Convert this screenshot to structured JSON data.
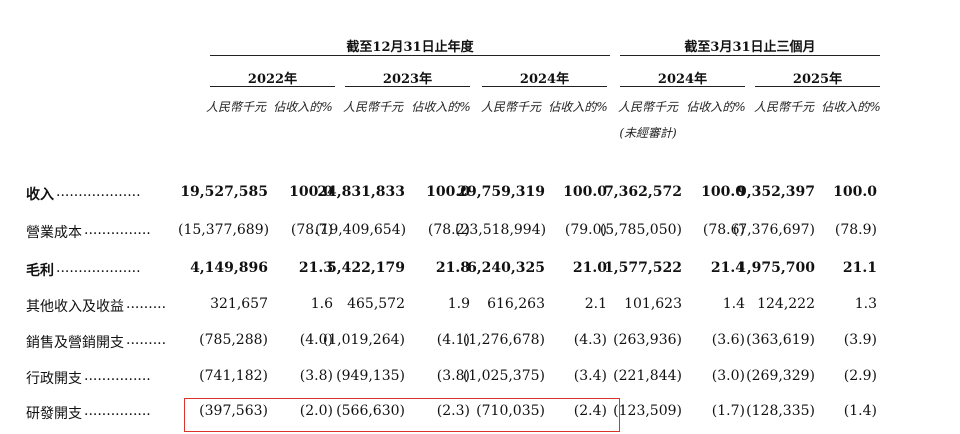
{
  "header": {
    "group_fy": "截至12月31日止年度",
    "group_q": "截至3月31日止三個月",
    "years": [
      "2022年",
      "2023年",
      "2024年",
      "2024年",
      "2025年"
    ],
    "sub_amount": "人民幣千元",
    "sub_pct": "佔收入的%",
    "unaudited": "(未經審計)"
  },
  "rows": [
    {
      "label": "收入",
      "dots": "...................",
      "bold": true,
      "values": [
        "19,527,585",
        "100.0",
        "24,831,833",
        "100.0",
        "29,759,319",
        "100.0",
        "7,362,572",
        "100.0",
        "9,352,397",
        "100.0"
      ]
    },
    {
      "label": "營業成本",
      "dots": "...............",
      "bold": false,
      "values": [
        "(15,377,689)",
        "(78.7)",
        "(19,409,654)",
        "(78.2)",
        "(23,518,994)",
        "(79.0)",
        "(5,785,050)",
        "(78.6)",
        "(7,376,697)",
        "(78.9)"
      ]
    },
    {
      "label": "毛利",
      "dots": "...................",
      "bold": true,
      "values": [
        "4,149,896",
        "21.3",
        "5,422,179",
        "21.8",
        "6,240,325",
        "21.0",
        "1,577,522",
        "21.4",
        "1,975,700",
        "21.1"
      ]
    },
    {
      "label": "其他收入及收益",
      "dots": ".........",
      "bold": false,
      "values": [
        "321,657",
        "1.6",
        "465,572",
        "1.9",
        "616,263",
        "2.1",
        "101,623",
        "1.4",
        "124,222",
        "1.3"
      ]
    },
    {
      "label": "銷售及營銷開支",
      "dots": ".........",
      "bold": false,
      "values": [
        "(785,288)",
        "(4.0)",
        "(1,019,264)",
        "(4.1)",
        "(1,276,678)",
        "(4.3)",
        "(263,936)",
        "(3.6)",
        "(363,619)",
        "(3.9)"
      ]
    },
    {
      "label": "行政開支",
      "dots": "...............",
      "bold": false,
      "values": [
        "(741,182)",
        "(3.8)",
        "(949,135)",
        "(3.8)",
        "(1,025,375)",
        "(3.4)",
        "(221,844)",
        "(3.0)",
        "(269,329)",
        "(2.9)"
      ]
    },
    {
      "label": "研發開支",
      "dots": "...............",
      "bold": false,
      "values": [
        "(397,563)",
        "(2.0)",
        "(566,630)",
        "(2.3)",
        "(710,035)",
        "(2.4)",
        "(123,509)",
        "(1.7)",
        "(128,335)",
        "(1.4)"
      ]
    }
  ],
  "colors": {
    "highlight": "#d9342b"
  }
}
